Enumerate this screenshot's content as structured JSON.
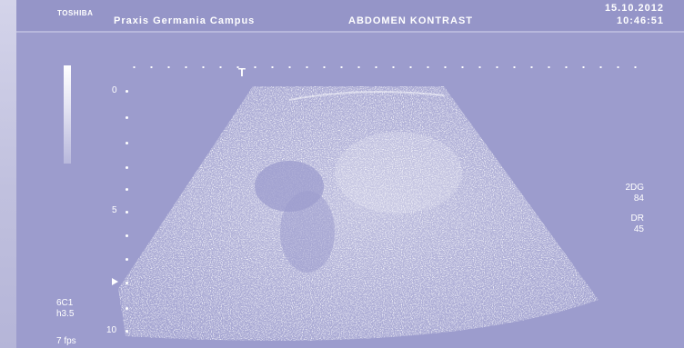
{
  "header": {
    "logo": "TOSHIBA",
    "clinic": "Praxis Germania Campus",
    "exam": "ABDOMEN KONTRAST",
    "date": "15.10.2012",
    "time": "10:46:51"
  },
  "focus_marker": "T",
  "depth_scale": {
    "label_0": "0",
    "label_5": "5",
    "label_10": "10"
  },
  "probe": {
    "model": "6C1",
    "harmonic": "h3.5",
    "frame_rate": "7 fps"
  },
  "image_params": {
    "mode": "2DG",
    "gain": "84",
    "dr_label": "DR",
    "dr_value": "45"
  },
  "colors": {
    "background": "#9c9ccd",
    "text": "#ffffff"
  }
}
